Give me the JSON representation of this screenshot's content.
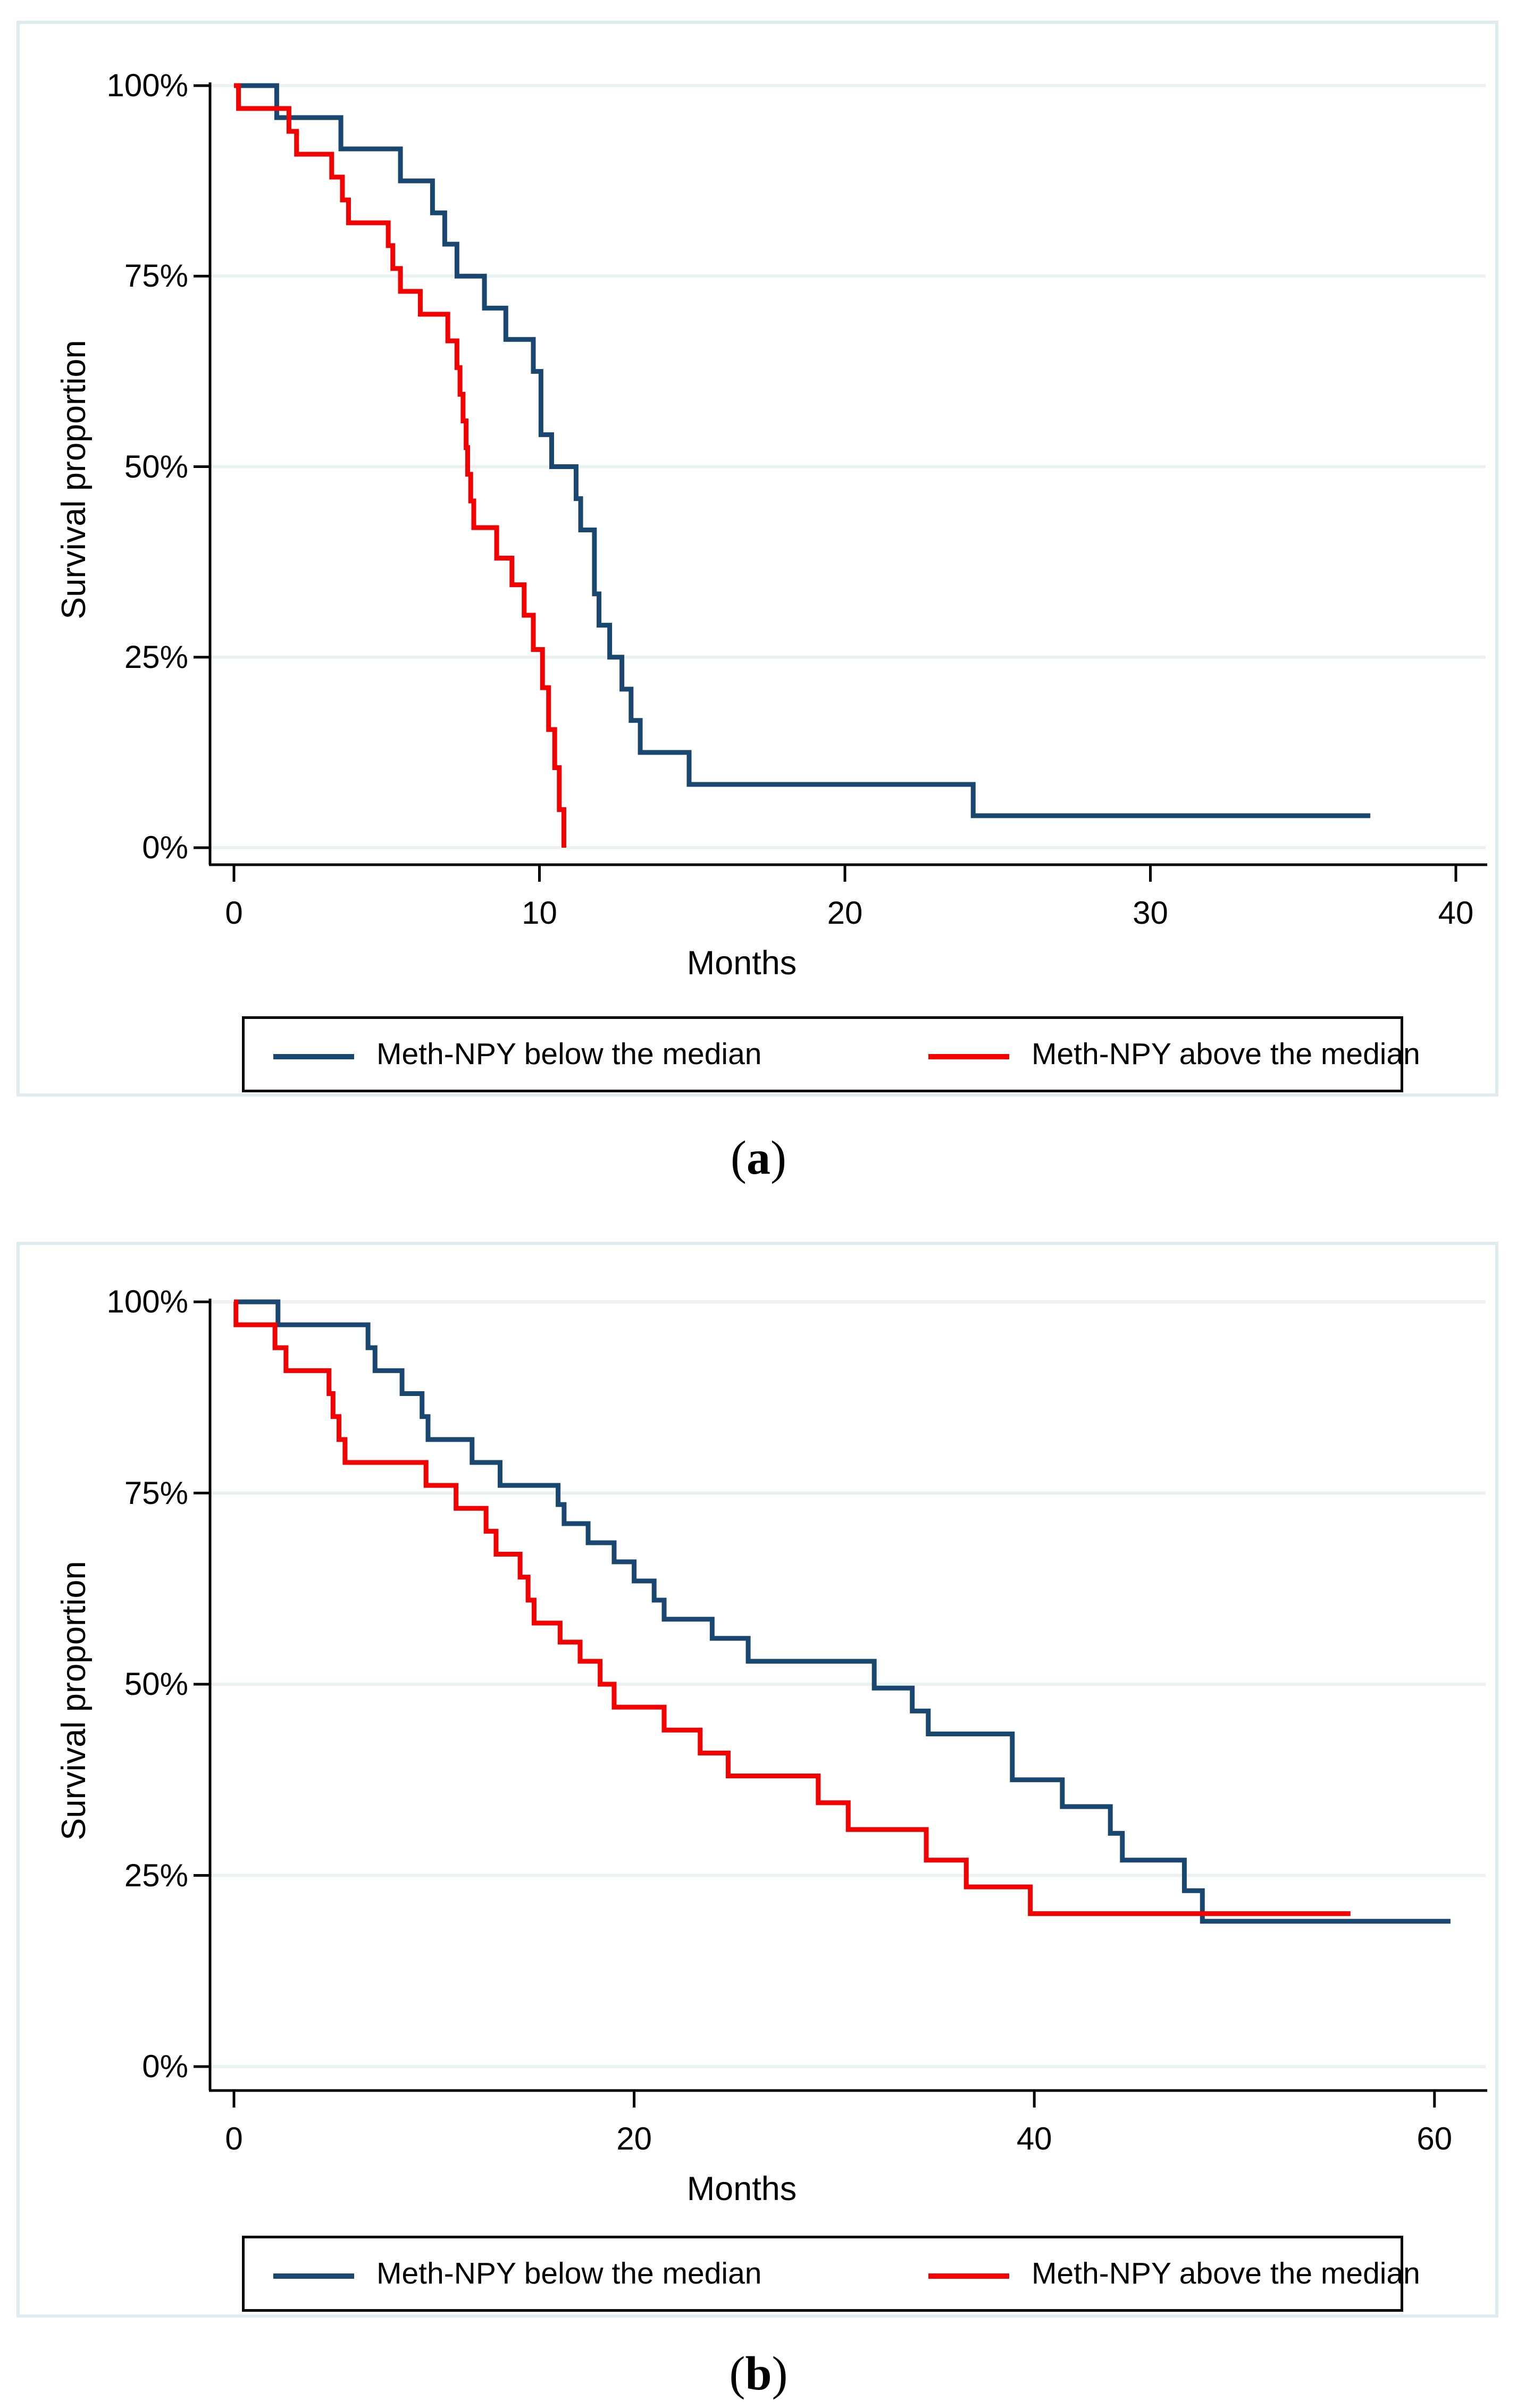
{
  "figure": {
    "panel_labels": [
      "a",
      "b"
    ],
    "colors": {
      "curve_below_median": "#1a476f",
      "curve_above_median": "#f40000",
      "gridline": "#e9f1f3",
      "panel_border": "#dfecef",
      "axis": "#000000",
      "legend_border": "#000000"
    }
  },
  "chart_data": [
    {
      "type": "line",
      "subtype": "kaplan-meier-step",
      "panel": "a",
      "title": "",
      "xlabel": "Months",
      "ylabel": "Survival proportion",
      "xlim": [
        0,
        41
      ],
      "ylim": [
        0,
        100
      ],
      "grid": true,
      "legend_position": "bottom",
      "x_ticks": [
        0,
        10,
        20,
        30,
        40
      ],
      "y_ticks": [
        {
          "value": 100,
          "label": "100%"
        },
        {
          "value": 75,
          "label": "75%"
        },
        {
          "value": 50,
          "label": "50%"
        },
        {
          "value": 25,
          "label": "25%"
        },
        {
          "value": 0,
          "label": "0%"
        }
      ],
      "series": [
        {
          "name": "Meth-NPY below the median",
          "color": "#1a476f",
          "end_x": 37.2,
          "points": [
            [
              0,
              100
            ],
            [
              1.4,
              95.8
            ],
            [
              3.5,
              91.7
            ],
            [
              5.45,
              87.5
            ],
            [
              6.5,
              83.3
            ],
            [
              6.9,
              79.2
            ],
            [
              7.3,
              75
            ],
            [
              8.2,
              70.8
            ],
            [
              8.9,
              66.7
            ],
            [
              9.8,
              62.5
            ],
            [
              10.05,
              54.2
            ],
            [
              10.4,
              50
            ],
            [
              11.2,
              45.8
            ],
            [
              11.35,
              41.7
            ],
            [
              11.8,
              33.3
            ],
            [
              11.95,
              29.2
            ],
            [
              12.3,
              25
            ],
            [
              12.7,
              20.8
            ],
            [
              13.0,
              16.7
            ],
            [
              13.3,
              12.5
            ],
            [
              14.9,
              8.3
            ],
            [
              24.2,
              4.2
            ]
          ]
        },
        {
          "name": "Meth-NPY above the median",
          "color": "#f40000",
          "end_x": 10.8,
          "points": [
            [
              0,
              100
            ],
            [
              0.15,
              97
            ],
            [
              1.8,
              94
            ],
            [
              2.05,
              91
            ],
            [
              3.2,
              88
            ],
            [
              3.55,
              85
            ],
            [
              3.75,
              82
            ],
            [
              5.05,
              79
            ],
            [
              5.2,
              76
            ],
            [
              5.45,
              73
            ],
            [
              6.1,
              70
            ],
            [
              7.0,
              66.5
            ],
            [
              7.3,
              63
            ],
            [
              7.4,
              59.5
            ],
            [
              7.5,
              56
            ],
            [
              7.6,
              52.5
            ],
            [
              7.65,
              49
            ],
            [
              7.75,
              45.5
            ],
            [
              7.85,
              42
            ],
            [
              8.6,
              38
            ],
            [
              9.1,
              34.5
            ],
            [
              9.5,
              30.5
            ],
            [
              9.8,
              26
            ],
            [
              10.1,
              21
            ],
            [
              10.3,
              15.5
            ],
            [
              10.5,
              10.5
            ],
            [
              10.65,
              5
            ],
            [
              10.8,
              0
            ]
          ]
        }
      ]
    },
    {
      "type": "line",
      "subtype": "kaplan-meier-step",
      "panel": "b",
      "title": "",
      "xlabel": "Months",
      "ylabel": "Survival proportion",
      "xlim": [
        0,
        62
      ],
      "ylim": [
        0,
        100
      ],
      "grid": true,
      "legend_position": "bottom",
      "x_ticks": [
        0,
        20,
        40,
        60
      ],
      "y_ticks": [
        {
          "value": 100,
          "label": "100%"
        },
        {
          "value": 75,
          "label": "75%"
        },
        {
          "value": 50,
          "label": "50%"
        },
        {
          "value": 25,
          "label": "25%"
        },
        {
          "value": 0,
          "label": "0%"
        }
      ],
      "series": [
        {
          "name": "Meth-NPY below the median",
          "color": "#1a476f",
          "end_x": 60.8,
          "points": [
            [
              0,
              100
            ],
            [
              2.2,
              97
            ],
            [
              6.7,
              94
            ],
            [
              7.05,
              91
            ],
            [
              8.4,
              88
            ],
            [
              9.4,
              85
            ],
            [
              9.7,
              82
            ],
            [
              11.9,
              79
            ],
            [
              13.3,
              76
            ],
            [
              16.2,
              73.5
            ],
            [
              16.5,
              71
            ],
            [
              17.7,
              68.5
            ],
            [
              19.0,
              66
            ],
            [
              20.0,
              63.5
            ],
            [
              21.0,
              61
            ],
            [
              21.5,
              58.5
            ],
            [
              23.9,
              56
            ],
            [
              25.7,
              53
            ],
            [
              32.0,
              49.5
            ],
            [
              33.9,
              46.5
            ],
            [
              34.7,
              43.5
            ],
            [
              38.9,
              37.5
            ],
            [
              41.4,
              34
            ],
            [
              43.8,
              30.5
            ],
            [
              44.4,
              27
            ],
            [
              47.5,
              23
            ],
            [
              48.4,
              19
            ]
          ]
        },
        {
          "name": "Meth-NPY above the median",
          "color": "#f40000",
          "end_x": 55.8,
          "points": [
            [
              0,
              100
            ],
            [
              0.1,
              97
            ],
            [
              2.05,
              94
            ],
            [
              2.6,
              91
            ],
            [
              4.75,
              88
            ],
            [
              4.95,
              85
            ],
            [
              5.25,
              82
            ],
            [
              5.55,
              79
            ],
            [
              9.6,
              76
            ],
            [
              11.1,
              73
            ],
            [
              12.6,
              70
            ],
            [
              13.1,
              67
            ],
            [
              14.3,
              64
            ],
            [
              14.7,
              61
            ],
            [
              15.0,
              58
            ],
            [
              16.3,
              55.5
            ],
            [
              17.3,
              53
            ],
            [
              18.3,
              50
            ],
            [
              19.0,
              47
            ],
            [
              21.5,
              44
            ],
            [
              23.3,
              41
            ],
            [
              24.7,
              38
            ],
            [
              29.2,
              34.5
            ],
            [
              30.7,
              31
            ],
            [
              34.6,
              27
            ],
            [
              36.6,
              23.5
            ],
            [
              39.8,
              20
            ]
          ]
        }
      ]
    }
  ]
}
